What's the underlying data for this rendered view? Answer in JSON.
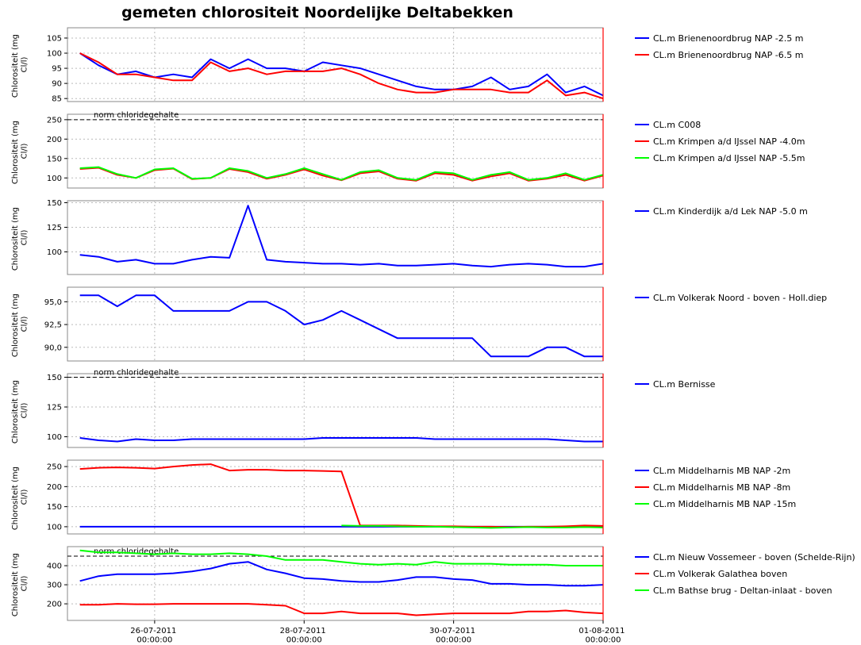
{
  "title": "gemeten chlorositeit Noordelijke Deltabekken",
  "chart_data": [
    {
      "type": "line",
      "ylabel": "Chlorositeit (mg Cl/l)",
      "x": [
        "25-07-2011 00:00:00",
        "25-07-2011 06:00:00",
        "25-07-2011 12:00:00",
        "25-07-2011 18:00:00",
        "26-07-2011 00:00:00",
        "26-07-2011 06:00:00",
        "26-07-2011 12:00:00",
        "26-07-2011 18:00:00",
        "27-07-2011 00:00:00",
        "27-07-2011 06:00:00",
        "27-07-2011 12:00:00",
        "27-07-2011 18:00:00",
        "28-07-2011 00:00:00",
        "28-07-2011 06:00:00",
        "28-07-2011 12:00:00",
        "28-07-2011 18:00:00",
        "29-07-2011 00:00:00",
        "29-07-2011 06:00:00",
        "29-07-2011 12:00:00",
        "29-07-2011 18:00:00",
        "30-07-2011 00:00:00",
        "30-07-2011 06:00:00",
        "30-07-2011 12:00:00",
        "30-07-2011 18:00:00",
        "31-07-2011 00:00:00",
        "31-07-2011 06:00:00",
        "31-07-2011 12:00:00",
        "31-07-2011 18:00:00",
        "01-08-2011 00:00:00"
      ],
      "xlim": [
        "24-07-2011 20:00:00",
        "01-08-2011 00:00:00"
      ],
      "ylim": [
        84,
        108.4
      ],
      "yticks": [
        85,
        90,
        95,
        100,
        105
      ],
      "grid": true,
      "vline": {
        "x": "01-08-2011 00:00:00",
        "color": "#ff0000"
      },
      "series": [
        {
          "name": "CL.m Brienenoordbrug NAP -2.5 m",
          "color": "#0000ff",
          "values": [
            100,
            96,
            93,
            94,
            92,
            93,
            92,
            98,
            95,
            98,
            95,
            95,
            94,
            97,
            96,
            95,
            93,
            91,
            89,
            88,
            88,
            89,
            92,
            88,
            89,
            93,
            87,
            89,
            86
          ]
        },
        {
          "name": "CL.m Brienenoordbrug NAP -6.5 m",
          "color": "#ff0000",
          "values": [
            100,
            97,
            93,
            93,
            92,
            91,
            91,
            97,
            94,
            95,
            93,
            94,
            94,
            94,
            95,
            93,
            90,
            88,
            87,
            87,
            88,
            88,
            88,
            87,
            87,
            91,
            86,
            87,
            85
          ]
        }
      ]
    },
    {
      "type": "line",
      "ylabel": "Chlorositeit (mg Cl/l)",
      "x": [
        "25-07-2011 00:00:00",
        "25-07-2011 06:00:00",
        "25-07-2011 12:00:00",
        "25-07-2011 18:00:00",
        "26-07-2011 00:00:00",
        "26-07-2011 06:00:00",
        "26-07-2011 12:00:00",
        "26-07-2011 18:00:00",
        "27-07-2011 00:00:00",
        "27-07-2011 06:00:00",
        "27-07-2011 12:00:00",
        "27-07-2011 18:00:00",
        "28-07-2011 00:00:00",
        "28-07-2011 06:00:00",
        "28-07-2011 12:00:00",
        "28-07-2011 18:00:00",
        "29-07-2011 00:00:00",
        "29-07-2011 06:00:00",
        "29-07-2011 12:00:00",
        "29-07-2011 18:00:00",
        "30-07-2011 00:00:00",
        "30-07-2011 06:00:00",
        "30-07-2011 12:00:00",
        "30-07-2011 18:00:00",
        "31-07-2011 00:00:00",
        "31-07-2011 06:00:00",
        "31-07-2011 12:00:00",
        "31-07-2011 18:00:00",
        "01-08-2011 00:00:00"
      ],
      "xlim": [
        "24-07-2011 20:00:00",
        "01-08-2011 00:00:00"
      ],
      "ylim": [
        74,
        264
      ],
      "yticks": [
        100,
        150,
        200,
        250
      ],
      "grid": true,
      "hlines": [
        {
          "value": 250,
          "label": "norm chloridegehalte"
        }
      ],
      "vline": {
        "x": "01-08-2011 00:00:00",
        "color": "#ff0000"
      },
      "series": [
        {
          "name": "CL.m C008",
          "color": "#0000ff",
          "values": [
            null,
            null,
            null,
            null,
            null,
            null,
            null,
            null,
            null,
            null,
            null,
            null,
            null,
            null,
            null,
            null,
            null,
            null,
            null,
            null,
            null,
            null,
            null,
            null,
            null,
            null,
            null,
            null,
            null
          ]
        },
        {
          "name": "CL.m Krimpen a/d IJssel NAP -4.0m",
          "color": "#ff0000",
          "values": [
            123,
            126,
            108,
            100,
            120,
            124,
            97,
            100,
            123,
            115,
            98,
            108,
            122,
            106,
            94,
            112,
            117,
            98,
            93,
            112,
            108,
            93,
            104,
            112,
            93,
            98,
            108,
            93,
            106
          ]
        },
        {
          "name": "CL.m Krimpen a/d IJssel NAP -5.5m",
          "color": "#00ff00",
          "values": [
            125,
            128,
            110,
            100,
            122,
            125,
            98,
            100,
            125,
            118,
            100,
            110,
            125,
            110,
            95,
            115,
            120,
            100,
            95,
            115,
            112,
            95,
            108,
            115,
            95,
            100,
            112,
            95,
            108
          ]
        }
      ]
    },
    {
      "type": "line",
      "ylabel": "Chlorositeit (mg Cl/l)",
      "x": [
        "25-07-2011 00:00:00",
        "25-07-2011 06:00:00",
        "25-07-2011 12:00:00",
        "25-07-2011 18:00:00",
        "26-07-2011 00:00:00",
        "26-07-2011 06:00:00",
        "26-07-2011 12:00:00",
        "26-07-2011 18:00:00",
        "27-07-2011 00:00:00",
        "27-07-2011 06:00:00",
        "27-07-2011 12:00:00",
        "27-07-2011 18:00:00",
        "28-07-2011 00:00:00",
        "28-07-2011 06:00:00",
        "28-07-2011 12:00:00",
        "28-07-2011 18:00:00",
        "29-07-2011 00:00:00",
        "29-07-2011 06:00:00",
        "29-07-2011 12:00:00",
        "29-07-2011 18:00:00",
        "30-07-2011 00:00:00",
        "30-07-2011 06:00:00",
        "30-07-2011 12:00:00",
        "30-07-2011 18:00:00",
        "31-07-2011 00:00:00",
        "31-07-2011 06:00:00",
        "31-07-2011 12:00:00",
        "31-07-2011 18:00:00",
        "01-08-2011 00:00:00"
      ],
      "xlim": [
        "24-07-2011 20:00:00",
        "01-08-2011 00:00:00"
      ],
      "ylim": [
        77,
        152
      ],
      "yticks": [
        100,
        125,
        150
      ],
      "grid": true,
      "vline": {
        "x": "01-08-2011 00:00:00",
        "color": "#ff0000"
      },
      "series": [
        {
          "name": "CL.m Kinderdijk a/d Lek NAP -5.0 m",
          "color": "#0000ff",
          "values": [
            97,
            95,
            90,
            92,
            88,
            88,
            92,
            95,
            94,
            147,
            92,
            90,
            89,
            88,
            88,
            87,
            88,
            86,
            86,
            87,
            88,
            86,
            85,
            87,
            88,
            87,
            85,
            85,
            88
          ]
        }
      ]
    },
    {
      "type": "line",
      "ylabel": "Chlorositeit (mg Cl/l)",
      "x": [
        "25-07-2011 00:00:00",
        "25-07-2011 06:00:00",
        "25-07-2011 12:00:00",
        "25-07-2011 18:00:00",
        "26-07-2011 00:00:00",
        "26-07-2011 06:00:00",
        "26-07-2011 12:00:00",
        "26-07-2011 18:00:00",
        "27-07-2011 00:00:00",
        "27-07-2011 06:00:00",
        "27-07-2011 12:00:00",
        "27-07-2011 18:00:00",
        "28-07-2011 00:00:00",
        "28-07-2011 06:00:00",
        "28-07-2011 12:00:00",
        "28-07-2011 18:00:00",
        "29-07-2011 00:00:00",
        "29-07-2011 06:00:00",
        "29-07-2011 12:00:00",
        "29-07-2011 18:00:00",
        "30-07-2011 00:00:00",
        "30-07-2011 06:00:00",
        "30-07-2011 12:00:00",
        "30-07-2011 18:00:00",
        "31-07-2011 00:00:00",
        "31-07-2011 06:00:00",
        "31-07-2011 12:00:00",
        "31-07-2011 18:00:00",
        "01-08-2011 00:00:00"
      ],
      "xlim": [
        "24-07-2011 20:00:00",
        "01-08-2011 00:00:00"
      ],
      "ylim": [
        88.5,
        96.6
      ],
      "yticks": [
        {
          "value": 90,
          "label": "90,0"
        },
        {
          "value": 92.5,
          "label": "92,5"
        },
        {
          "value": 95,
          "label": "95,0"
        }
      ],
      "grid": true,
      "vline": {
        "x": "01-08-2011 00:00:00",
        "color": "#ff0000"
      },
      "series": [
        {
          "name": "CL.m Volkerak Noord - boven - Holl.diep",
          "color": "#0000ff",
          "values": [
            95.7,
            95.7,
            94.5,
            95.7,
            95.7,
            94,
            94,
            94,
            94,
            95,
            95,
            94,
            92.5,
            93,
            94,
            93,
            92,
            91,
            91,
            91,
            91,
            91,
            89,
            89,
            89,
            90,
            90,
            89,
            89
          ]
        }
      ]
    },
    {
      "type": "line",
      "ylabel": "Chlorositeit (mg Cl/l)",
      "x": [
        "25-07-2011 00:00:00",
        "25-07-2011 06:00:00",
        "25-07-2011 12:00:00",
        "25-07-2011 18:00:00",
        "26-07-2011 00:00:00",
        "26-07-2011 06:00:00",
        "26-07-2011 12:00:00",
        "26-07-2011 18:00:00",
        "27-07-2011 00:00:00",
        "27-07-2011 06:00:00",
        "27-07-2011 12:00:00",
        "27-07-2011 18:00:00",
        "28-07-2011 00:00:00",
        "28-07-2011 06:00:00",
        "28-07-2011 12:00:00",
        "28-07-2011 18:00:00",
        "29-07-2011 00:00:00",
        "29-07-2011 06:00:00",
        "29-07-2011 12:00:00",
        "29-07-2011 18:00:00",
        "30-07-2011 00:00:00",
        "30-07-2011 06:00:00",
        "30-07-2011 12:00:00",
        "30-07-2011 18:00:00",
        "31-07-2011 00:00:00",
        "31-07-2011 06:00:00",
        "31-07-2011 12:00:00",
        "31-07-2011 18:00:00",
        "01-08-2011 00:00:00"
      ],
      "xlim": [
        "24-07-2011 20:00:00",
        "01-08-2011 00:00:00"
      ],
      "ylim": [
        91,
        153
      ],
      "yticks": [
        100,
        125,
        150
      ],
      "grid": true,
      "hlines": [
        {
          "value": 150,
          "label": "norm chloridegehalte"
        }
      ],
      "vline": {
        "x": "01-08-2011 00:00:00",
        "color": "#ff0000"
      },
      "series": [
        {
          "name": "CL.m Bernisse",
          "color": "#0000ff",
          "values": [
            99,
            97,
            96,
            98,
            97,
            97,
            98,
            98,
            98,
            98,
            98,
            98,
            98,
            99,
            99,
            99,
            99,
            99,
            99,
            98,
            98,
            98,
            98,
            98,
            98,
            98,
            97,
            96,
            96
          ]
        }
      ]
    },
    {
      "type": "line",
      "ylabel": "Chlorositeit (mg Cl/l)",
      "x": [
        "25-07-2011 00:00:00",
        "25-07-2011 06:00:00",
        "25-07-2011 12:00:00",
        "25-07-2011 18:00:00",
        "26-07-2011 00:00:00",
        "26-07-2011 06:00:00",
        "26-07-2011 12:00:00",
        "26-07-2011 18:00:00",
        "27-07-2011 00:00:00",
        "27-07-2011 06:00:00",
        "27-07-2011 12:00:00",
        "27-07-2011 18:00:00",
        "28-07-2011 00:00:00",
        "28-07-2011 06:00:00",
        "28-07-2011 12:00:00",
        "28-07-2011 18:00:00",
        "29-07-2011 00:00:00",
        "29-07-2011 06:00:00",
        "29-07-2011 12:00:00",
        "29-07-2011 18:00:00",
        "30-07-2011 00:00:00",
        "30-07-2011 06:00:00",
        "30-07-2011 12:00:00",
        "30-07-2011 18:00:00",
        "31-07-2011 00:00:00",
        "31-07-2011 06:00:00",
        "31-07-2011 12:00:00",
        "31-07-2011 18:00:00",
        "01-08-2011 00:00:00"
      ],
      "xlim": [
        "24-07-2011 20:00:00",
        "01-08-2011 00:00:00"
      ],
      "ylim": [
        82,
        266
      ],
      "yticks": [
        100,
        150,
        200,
        250
      ],
      "grid": true,
      "vline": {
        "x": "01-08-2011 00:00:00",
        "color": "#ff0000"
      },
      "series": [
        {
          "name": "CL.m Middelharnis MB NAP -2m",
          "color": "#0000ff",
          "values": [
            100,
            100,
            100,
            100,
            100,
            100,
            100,
            100,
            100,
            100,
            100,
            100,
            100,
            100,
            100,
            100,
            100,
            100,
            100,
            100,
            100,
            100,
            100,
            100,
            100,
            100,
            100,
            100,
            100
          ]
        },
        {
          "name": "CL.m Middelharnis MB NAP -8m",
          "color": "#ff0000",
          "values": [
            244,
            247,
            248,
            247,
            245,
            250,
            254,
            256,
            240,
            242,
            242,
            240,
            240,
            239,
            238,
            103,
            103,
            103,
            102,
            101,
            101,
            100,
            100,
            99,
            100,
            100,
            101,
            103,
            102
          ]
        },
        {
          "name": "CL.m Middelharnis MB NAP -15m",
          "color": "#00ff00",
          "values": [
            null,
            null,
            null,
            null,
            null,
            null,
            null,
            null,
            null,
            null,
            null,
            null,
            null,
            null,
            103,
            102,
            102,
            101,
            100,
            100,
            99,
            98,
            97,
            98,
            99,
            98,
            98,
            99,
            98
          ]
        }
      ]
    },
    {
      "type": "line",
      "ylabel": "Chlorositeit (mg Cl/l)",
      "x": [
        "25-07-2011 00:00:00",
        "25-07-2011 06:00:00",
        "25-07-2011 12:00:00",
        "25-07-2011 18:00:00",
        "26-07-2011 00:00:00",
        "26-07-2011 06:00:00",
        "26-07-2011 12:00:00",
        "26-07-2011 18:00:00",
        "27-07-2011 00:00:00",
        "27-07-2011 06:00:00",
        "27-07-2011 12:00:00",
        "27-07-2011 18:00:00",
        "28-07-2011 00:00:00",
        "28-07-2011 06:00:00",
        "28-07-2011 12:00:00",
        "28-07-2011 18:00:00",
        "29-07-2011 00:00:00",
        "29-07-2011 06:00:00",
        "29-07-2011 12:00:00",
        "29-07-2011 18:00:00",
        "30-07-2011 00:00:00",
        "30-07-2011 06:00:00",
        "30-07-2011 12:00:00",
        "30-07-2011 18:00:00",
        "31-07-2011 00:00:00",
        "31-07-2011 06:00:00",
        "31-07-2011 12:00:00",
        "31-07-2011 18:00:00",
        "01-08-2011 00:00:00"
      ],
      "xlim": [
        "24-07-2011 20:00:00",
        "01-08-2011 00:00:00"
      ],
      "ylim": [
        113,
        500
      ],
      "yticks": [
        200,
        300,
        400
      ],
      "grid": true,
      "xticks": [
        "26-07-2011 00:00:00",
        "28-07-2011 00:00:00",
        "30-07-2011 00:00:00",
        "01-08-2011 00:00:00"
      ],
      "hlines": [
        {
          "value": 450,
          "label": "norm chloridegehalte"
        }
      ],
      "vline": {
        "x": "01-08-2011 00:00:00",
        "color": "#ff0000"
      },
      "series": [
        {
          "name": "CL.m Nieuw Vossemeer - boven (Schelde-Rijn)",
          "color": "#0000ff",
          "values": [
            320,
            345,
            355,
            355,
            355,
            360,
            370,
            385,
            410,
            420,
            380,
            360,
            335,
            330,
            320,
            315,
            315,
            325,
            340,
            340,
            330,
            325,
            305,
            305,
            300,
            300,
            295,
            295,
            300
          ]
        },
        {
          "name": "CL.m Volkerak Galathea boven",
          "color": "#ff0000",
          "values": [
            195,
            195,
            200,
            198,
            198,
            200,
            200,
            200,
            200,
            200,
            195,
            190,
            150,
            150,
            160,
            150,
            150,
            150,
            140,
            145,
            150,
            150,
            150,
            150,
            160,
            160,
            165,
            155,
            150
          ]
        },
        {
          "name": "CL.m Bathse brug - Deltan-inlaat - boven",
          "color": "#00ff00",
          "values": [
            480,
            470,
            470,
            465,
            460,
            465,
            460,
            460,
            465,
            460,
            450,
            430,
            430,
            430,
            420,
            410,
            405,
            410,
            405,
            420,
            410,
            410,
            410,
            405,
            405,
            405,
            400,
            400,
            400
          ]
        }
      ]
    }
  ]
}
